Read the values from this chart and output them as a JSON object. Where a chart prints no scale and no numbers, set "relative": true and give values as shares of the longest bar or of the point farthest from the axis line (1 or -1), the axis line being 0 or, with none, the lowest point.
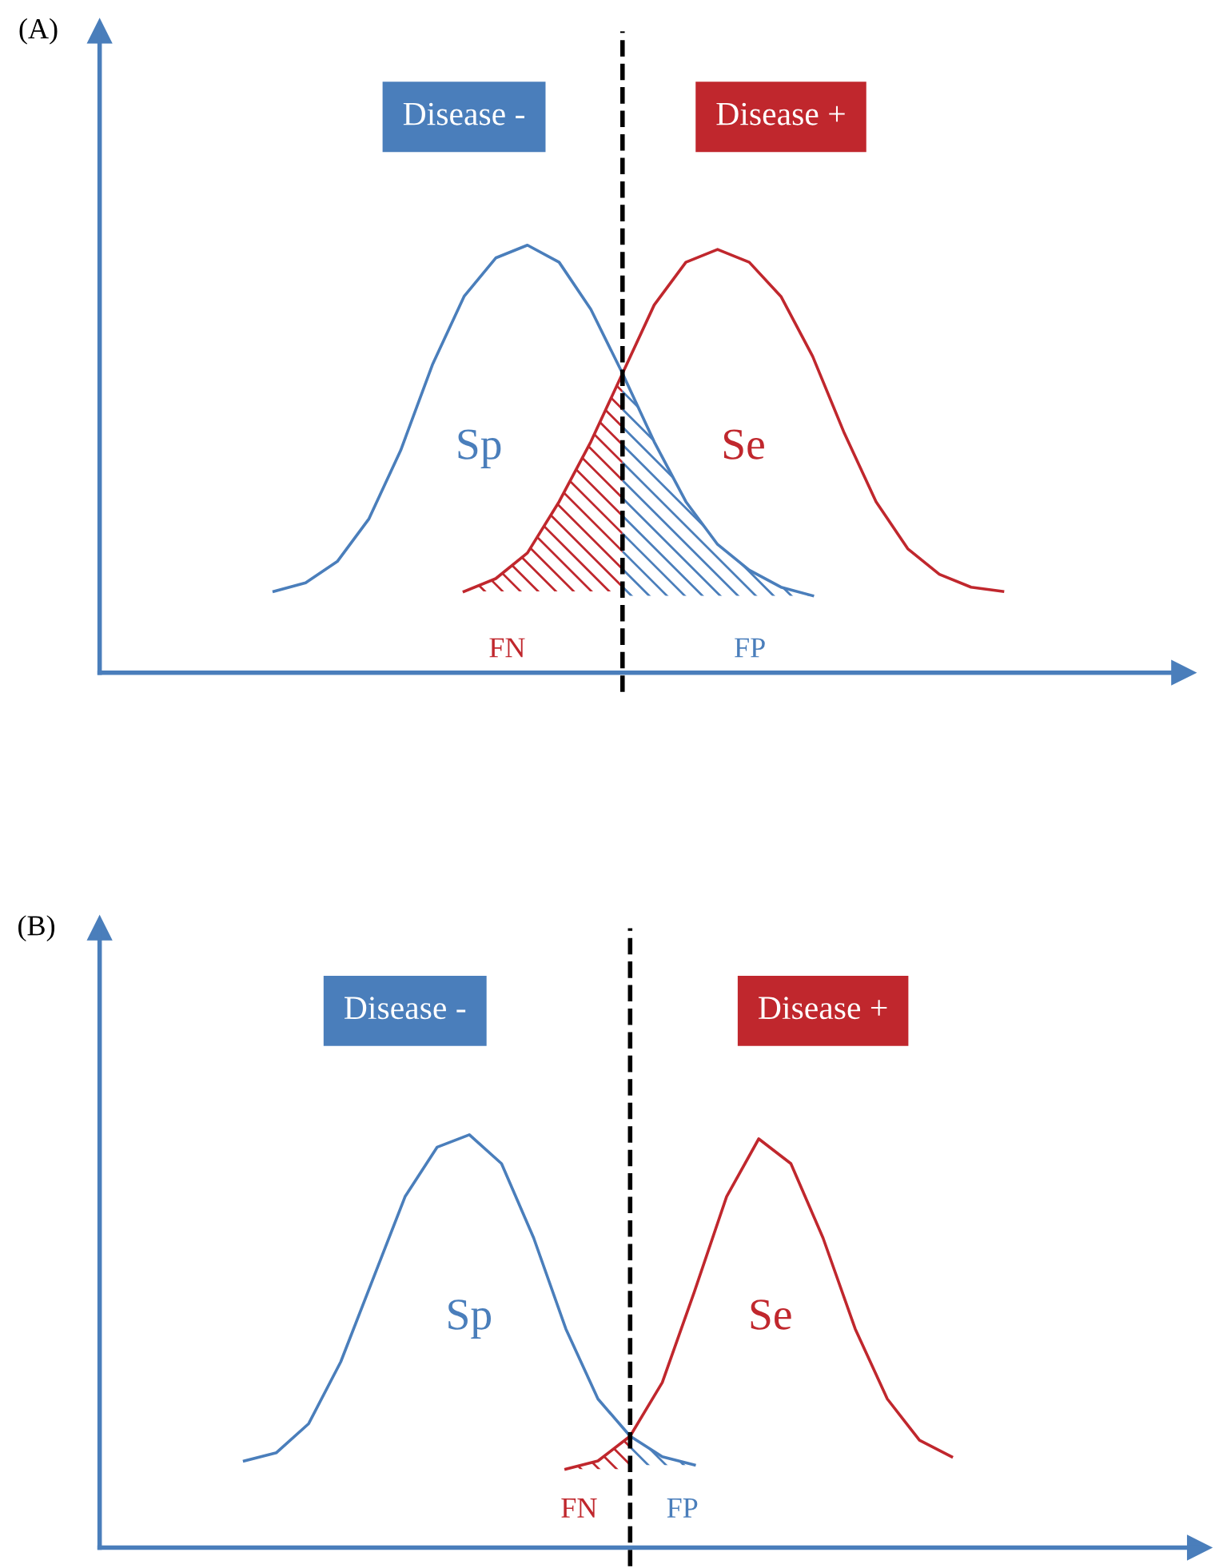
{
  "chart_data": [
    {
      "type": "line",
      "title": "(A)",
      "relative": true,
      "legend": "top",
      "categories": [
        null,
        null,
        null,
        null,
        null,
        null,
        null,
        null,
        null,
        null,
        null,
        null,
        null,
        null,
        null,
        null,
        null,
        null,
        null,
        null,
        null,
        null,
        null,
        null,
        null,
        null,
        null,
        null,
        null,
        null,
        null,
        null,
        null,
        null
      ],
      "series": [
        {
          "name": "Disease -",
          "color": "#4a7ebb",
          "values": [
            null,
            null,
            null,
            null,
            null,
            0.19,
            0.21,
            0.26,
            0.36,
            0.52,
            0.72,
            0.88,
            0.97,
            1.0,
            0.96,
            0.85,
            0.7,
            0.54,
            0.4,
            0.3,
            0.24,
            0.2,
            0.18,
            null,
            null,
            null,
            null,
            null,
            null,
            null,
            null,
            null,
            null,
            null
          ]
        },
        {
          "name": "Disease +",
          "color": "#c0272d",
          "values": [
            null,
            null,
            null,
            null,
            null,
            null,
            null,
            null,
            null,
            null,
            null,
            0.19,
            0.22,
            0.28,
            0.4,
            0.54,
            0.7,
            0.86,
            0.96,
            0.99,
            0.96,
            0.88,
            0.74,
            0.56,
            0.4,
            0.29,
            0.23,
            0.2,
            0.19,
            null,
            null,
            null,
            null,
            null
          ]
        },
        {
          "type": "area",
          "color": "#c0272d",
          "values": [
            null,
            null,
            null,
            null,
            null,
            null,
            null,
            null,
            null,
            null,
            null,
            0.19,
            0.22,
            0.28,
            0.4,
            0.54,
            0.7,
            null,
            null,
            null,
            null,
            null,
            null,
            null,
            null,
            null,
            null,
            null,
            null,
            null,
            null,
            null,
            null,
            null
          ]
        },
        {
          "type": "area",
          "color": "#4a7ebb",
          "values": [
            null,
            null,
            null,
            null,
            null,
            null,
            null,
            null,
            null,
            null,
            null,
            null,
            null,
            null,
            null,
            null,
            0.7,
            0.54,
            0.4,
            0.3,
            0.24,
            0.2,
            0.18,
            null,
            null,
            null,
            null,
            null,
            null,
            null,
            null,
            null,
            null,
            null
          ]
        }
      ],
      "annotations": [
        "Sp",
        "Se",
        "FN",
        "FP"
      ]
    },
    {
      "type": "line",
      "title": "(B)",
      "relative": true,
      "legend": "top",
      "categories": [
        null,
        null,
        null,
        null,
        null,
        null,
        null,
        null,
        null,
        null,
        null,
        null,
        null,
        null,
        null,
        null,
        null,
        null,
        null,
        null,
        null,
        null,
        null,
        null,
        null,
        null,
        null,
        null,
        null,
        null,
        null,
        null,
        null,
        null
      ],
      "series": [
        {
          "name": "Disease -",
          "color": "#4a7ebb",
          "values": [
            null,
            null,
            null,
            null,
            0.21,
            0.23,
            0.3,
            0.45,
            0.65,
            0.85,
            0.97,
            1.0,
            0.93,
            0.75,
            0.53,
            0.36,
            0.27,
            0.22,
            0.2,
            null,
            null,
            null,
            null,
            null,
            null,
            null,
            null,
            null,
            null,
            null,
            null,
            null,
            null,
            null
          ]
        },
        {
          "name": "Disease +",
          "color": "#c0272d",
          "values": [
            null,
            null,
            null,
            null,
            null,
            null,
            null,
            null,
            null,
            null,
            null,
            null,
            null,
            null,
            0.19,
            0.21,
            0.27,
            0.4,
            0.62,
            0.85,
            0.99,
            0.93,
            0.75,
            0.53,
            0.36,
            0.26,
            0.22,
            null,
            null,
            null,
            null,
            null,
            null,
            null
          ]
        },
        {
          "type": "area",
          "color": "#c0272d",
          "values": [
            null,
            null,
            null,
            null,
            null,
            null,
            null,
            null,
            null,
            null,
            null,
            null,
            null,
            null,
            0.19,
            0.21,
            0.27,
            null,
            null,
            null,
            null,
            null,
            null,
            null,
            null,
            null,
            null,
            null,
            null,
            null,
            null,
            null,
            null,
            null
          ]
        },
        {
          "type": "area",
          "color": "#4a7ebb",
          "values": [
            null,
            null,
            null,
            null,
            null,
            null,
            null,
            null,
            null,
            null,
            null,
            null,
            null,
            null,
            null,
            null,
            0.27,
            0.22,
            0.2,
            null,
            null,
            null,
            null,
            null,
            null,
            null,
            null,
            null,
            null,
            null,
            null,
            null,
            null,
            null
          ]
        }
      ],
      "annotations": [
        "Sp",
        "Se",
        "FN",
        "FP"
      ]
    }
  ]
}
